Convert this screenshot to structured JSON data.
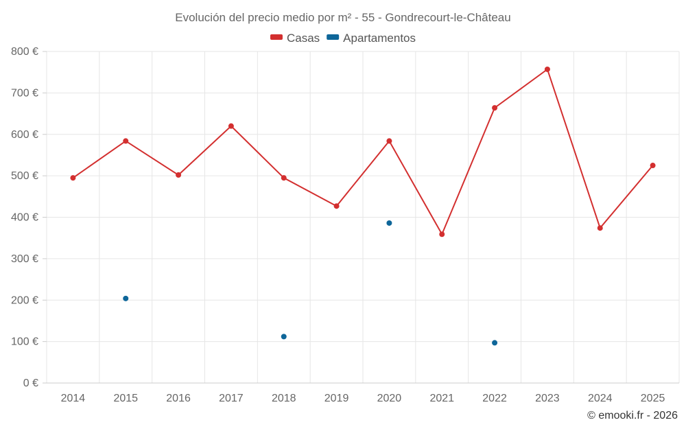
{
  "chart_data": {
    "type": "line",
    "title": "Evolución del precio medio por m² - 55 - Gondrecourt-le-Château",
    "categories": [
      "2014",
      "2015",
      "2016",
      "2017",
      "2018",
      "2019",
      "2020",
      "2021",
      "2022",
      "2023",
      "2024",
      "2025"
    ],
    "ylim": [
      0,
      800
    ],
    "yticks": [
      0,
      100,
      200,
      300,
      400,
      500,
      600,
      700,
      800
    ],
    "y_unit": "€",
    "grid": true,
    "legend_position": "top-center",
    "series": [
      {
        "name": "Casas",
        "color": "#d32f2f",
        "mode": "line",
        "values": [
          495,
          584,
          502,
          620,
          495,
          427,
          584,
          359,
          664,
          757,
          374,
          525
        ]
      },
      {
        "name": "Apartamentos",
        "color": "#0e6699",
        "mode": "points",
        "values": [
          null,
          204,
          null,
          null,
          112,
          null,
          386,
          null,
          97,
          null,
          null,
          null
        ]
      }
    ]
  },
  "credit": "© emooki.fr - 2026"
}
